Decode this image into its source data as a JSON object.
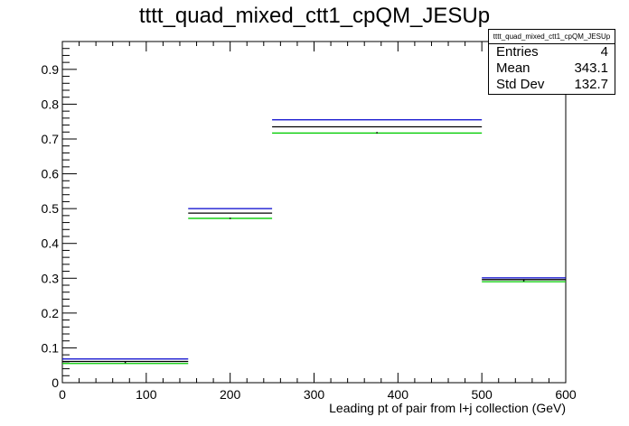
{
  "chart_data": {
    "type": "bar",
    "title": "tttt_quad_mixed_ctt1_cpQM_JESUp",
    "xlabel": "Leading pt of pair from l+j collection (GeV)",
    "ylabel": "",
    "xlim": [
      0,
      600
    ],
    "ylim": [
      0,
      0.98
    ],
    "x_ticks": [
      0,
      100,
      200,
      300,
      400,
      500,
      600
    ],
    "y_ticks": [
      0,
      0.1,
      0.2,
      0.3,
      0.4,
      0.5,
      0.6,
      0.7,
      0.8,
      0.9
    ],
    "bins": [
      [
        0,
        150
      ],
      [
        150,
        250
      ],
      [
        250,
        500
      ],
      [
        500,
        600
      ]
    ],
    "series": [
      {
        "color": "#0000cc",
        "values": [
          0.068,
          0.5,
          0.755,
          0.301
        ]
      },
      {
        "color": "#000000",
        "values": [
          0.061,
          0.487,
          0.735,
          0.296
        ]
      },
      {
        "color": "#00cc00",
        "values": [
          0.055,
          0.472,
          0.717,
          0.29
        ]
      }
    ],
    "central_points": [
      0.058,
      0.472,
      0.718,
      0.293
    ],
    "grid": false,
    "stats": {
      "title": "tttt_quad_mixed_ctt1_cpQM_JESUp",
      "entries_label": "Entries",
      "entries": "4",
      "mean_label": "Mean",
      "mean": "343.1",
      "stddev_label": "Std Dev",
      "stddev": "132.7"
    }
  }
}
